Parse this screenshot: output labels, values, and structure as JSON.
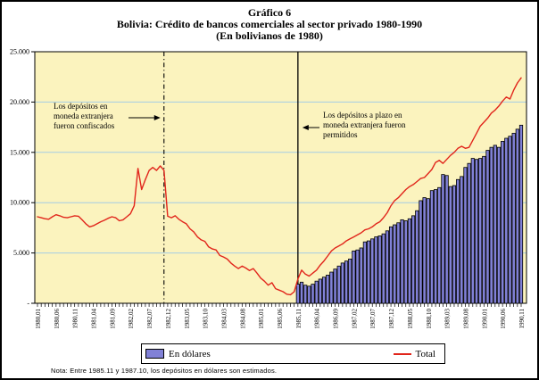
{
  "title": {
    "line1": "Gráfico 6",
    "line2": "Bolivia: Crédito de bancos comerciales al sector privado 1980-1990",
    "line3": "(En bolivianos de 1980)"
  },
  "annotations": {
    "left": "Los depósitos en moneda extranjera fueron confiscados",
    "right": "Los depósitos a plazo en moneda extranjera fueron permitidos"
  },
  "legend": {
    "bar_label": "En dólares",
    "line_label": "Total"
  },
  "footnote": "Nota: Entre 1985.11 y 1987.10, los depósitos en dólares son estimados.",
  "colors": {
    "plot_bg": "#FBF3BE",
    "grid": "#A4CCE4",
    "line": "#E1251B",
    "bar_fill": "#8181D7",
    "bar_stroke": "#000000",
    "axis": "#000000"
  },
  "chart_data": {
    "type": "bar+line",
    "title": "Bolivia: Crédito de bancos comerciales al sector privado 1980-1990 (En bolivianos de 1980)",
    "x_start": "1980.01",
    "x_end": "1990.11",
    "months": 131,
    "x_tick_every": 5,
    "x_tick_labels": [
      "1980,01",
      "1980,06",
      "1980,11",
      "1981,04",
      "1981,09",
      "1982,02",
      "1982,07",
      "1982,12",
      "1983,05",
      "1983,10",
      "1984,03",
      "1984,08",
      "1985,01",
      "1985,06",
      "1985,11",
      "1986,04",
      "1986,09",
      "1987,02",
      "1987,07",
      "1987,12",
      "1988,05",
      "1988,10",
      "1989,03",
      "1989,08",
      "1990,01",
      "1990,06",
      "1990,11"
    ],
    "y_tick_labels": [
      "25.000",
      "20.000",
      "15.000",
      "10.000",
      "5.000",
      "-"
    ],
    "y_tick_values": [
      25000,
      20000,
      15000,
      10000,
      5000,
      0
    ],
    "ylim": [
      0,
      25000
    ],
    "grid_values": [
      5000,
      10000,
      15000,
      20000
    ],
    "legend_position": "bottom",
    "series": [
      {
        "name": "En dólares",
        "type": "bar",
        "start_index": 70,
        "values": [
          1900,
          2100,
          1800,
          1700,
          1900,
          2200,
          2400,
          2600,
          2800,
          3100,
          3400,
          3700,
          4000,
          4200,
          4400,
          5200,
          5300,
          5500,
          6100,
          6200,
          6400,
          6600,
          6700,
          6900,
          7200,
          7600,
          7800,
          8000,
          8300,
          8200,
          8400,
          8700,
          9200,
          10200,
          10500,
          10400,
          11200,
          11300,
          11500,
          12800,
          12700,
          11600,
          11700,
          12300,
          12600,
          13500,
          13900,
          14400,
          14300,
          14400,
          14600,
          15200,
          15500,
          15700,
          15500,
          16100,
          16400,
          16600,
          16900,
          17300,
          17700
        ]
      },
      {
        "name": "Total",
        "type": "line",
        "values": [
          8600,
          8500,
          8400,
          8350,
          8600,
          8800,
          8700,
          8550,
          8500,
          8600,
          8700,
          8650,
          8300,
          7900,
          7600,
          7700,
          7900,
          8100,
          8250,
          8450,
          8600,
          8500,
          8200,
          8300,
          8600,
          8900,
          9700,
          13400,
          11300,
          12300,
          13200,
          13500,
          13200,
          13650,
          13200,
          8650,
          8500,
          8700,
          8350,
          8100,
          7900,
          7400,
          7100,
          6600,
          6300,
          6150,
          5600,
          5400,
          5300,
          4750,
          4600,
          4400,
          4000,
          3700,
          3450,
          3700,
          3500,
          3250,
          3450,
          3000,
          2500,
          2200,
          1800,
          2050,
          1450,
          1300,
          1150,
          900,
          850,
          1150,
          2400,
          3300,
          2900,
          2700,
          3000,
          3300,
          3800,
          4200,
          4700,
          5200,
          5500,
          5700,
          5900,
          6200,
          6400,
          6600,
          6800,
          7000,
          7300,
          7400,
          7600,
          7900,
          8100,
          8500,
          9000,
          9700,
          10200,
          10500,
          10900,
          11300,
          11600,
          11800,
          12100,
          12400,
          12500,
          12900,
          13300,
          14000,
          14200,
          13900,
          14300,
          14700,
          15000,
          15400,
          15600,
          15400,
          15500,
          16200,
          16900,
          17600,
          18000,
          18400,
          18900,
          19200,
          19600,
          20100,
          20500,
          20300,
          21200,
          21900,
          22400
        ]
      }
    ],
    "vlines": [
      {
        "index": 34,
        "style": "dashdot",
        "event": "1982.11"
      },
      {
        "index": 70,
        "style": "solid",
        "event": "1985.11"
      }
    ]
  }
}
